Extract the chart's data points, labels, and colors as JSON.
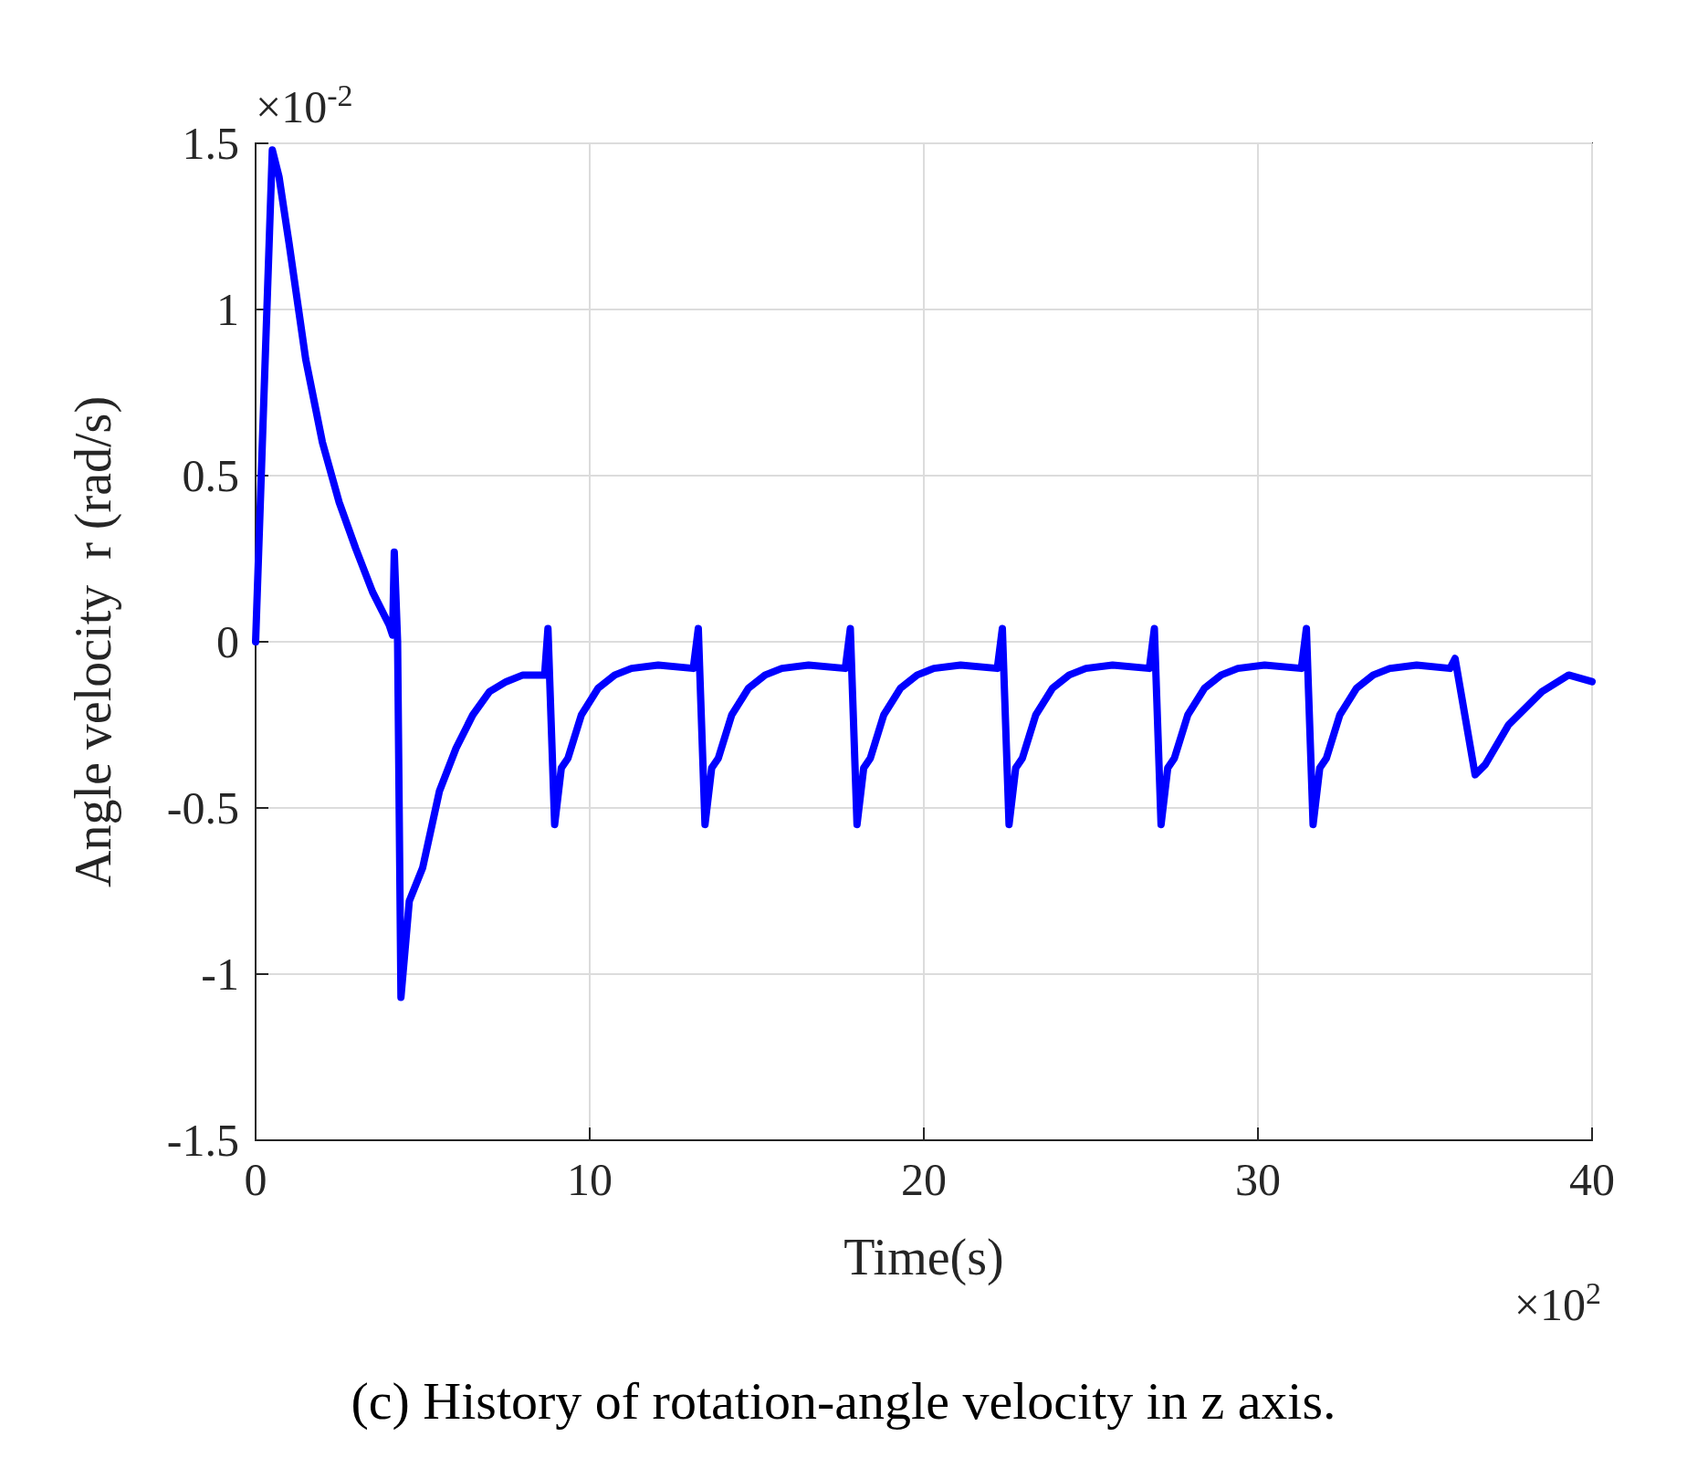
{
  "chart_data": {
    "type": "line",
    "title": "(c) History of rotation-angle velocity in z axis.",
    "xlabel": "Time(s)",
    "ylabel": "Angle velocity  r (rad/s)",
    "annotations": [
      "×10$^{-2}$",
      "×10$^{2}$"
    ],
    "x": [
      0,
      0.5,
      0.7,
      1,
      1.5,
      2,
      2.5,
      3,
      3.5,
      4,
      4.1,
      4.15,
      4.25,
      4.35,
      4.6,
      5,
      5.5,
      6,
      6.5,
      7,
      7.5,
      8,
      8.65,
      8.75,
      8.95,
      9.15,
      9.35,
      9.75,
      10.25,
      10.75,
      11.25,
      12.05,
      13.1,
      13.25,
      13.45,
      13.65,
      13.85,
      14.25,
      14.75,
      15.25,
      15.75,
      16.55,
      17.65,
      17.8,
      18.0,
      18.2,
      18.4,
      18.8,
      19.3,
      19.8,
      20.3,
      21.1,
      22.2,
      22.35,
      22.55,
      22.75,
      22.95,
      23.35,
      23.85,
      24.35,
      24.85,
      25.65,
      26.75,
      26.9,
      27.1,
      27.3,
      27.5,
      27.9,
      28.4,
      28.9,
      29.4,
      30.2,
      31.3,
      31.45,
      31.65,
      31.85,
      32.05,
      32.45,
      32.95,
      33.45,
      33.95,
      34.75,
      35.75,
      35.9,
      36.5,
      36.8,
      37.5,
      38.5,
      39.3,
      40
    ],
    "series": [
      {
        "color": "#0000ff",
        "values": [
          0,
          1.48,
          1.4,
          1.2,
          0.85,
          0.6,
          0.42,
          0.28,
          0.15,
          0.05,
          0.02,
          0.27,
          0.0,
          -1.07,
          -0.78,
          -0.68,
          -0.45,
          -0.32,
          -0.22,
          -0.15,
          -0.12,
          -0.1,
          -0.1,
          0.04,
          -0.55,
          -0.38,
          -0.35,
          -0.22,
          -0.14,
          -0.1,
          -0.08,
          -0.07,
          -0.08,
          0.04,
          -0.55,
          -0.38,
          -0.35,
          -0.22,
          -0.14,
          -0.1,
          -0.08,
          -0.07,
          -0.08,
          0.04,
          -0.55,
          -0.38,
          -0.35,
          -0.22,
          -0.14,
          -0.1,
          -0.08,
          -0.07,
          -0.08,
          0.04,
          -0.55,
          -0.38,
          -0.35,
          -0.22,
          -0.14,
          -0.1,
          -0.08,
          -0.07,
          -0.08,
          0.04,
          -0.55,
          -0.38,
          -0.35,
          -0.22,
          -0.14,
          -0.1,
          -0.08,
          -0.07,
          -0.08,
          0.04,
          -0.55,
          -0.38,
          -0.35,
          -0.22,
          -0.14,
          -0.1,
          -0.08,
          -0.07,
          -0.08,
          -0.05,
          -0.4,
          -0.37,
          -0.25,
          -0.15,
          -0.1,
          -0.12
        ]
      }
    ],
    "xlim": [
      0,
      40
    ],
    "xticks": [
      0,
      10,
      20,
      30,
      40
    ],
    "ylim": [
      -1.5,
      1.5
    ],
    "yticks": [
      -1.5,
      -1,
      -0.5,
      0,
      0.5,
      1,
      1.5
    ],
    "grid": true,
    "marker": "none",
    "line_style": "solid"
  }
}
